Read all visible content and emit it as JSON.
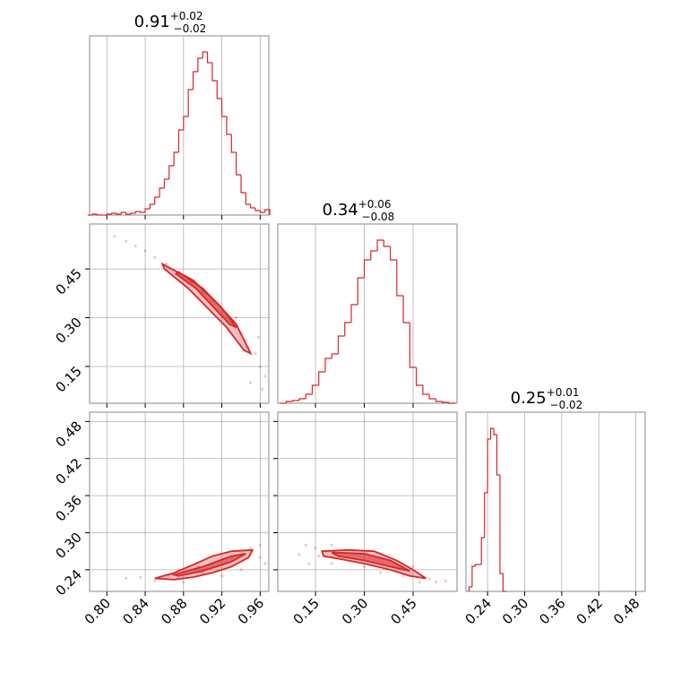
{
  "chart_data": [
    {
      "type": "histogram",
      "title": {
        "value": "0.91",
        "plus": "+0.02",
        "minus": "−0.02"
      },
      "color": "#d62728",
      "grid": true,
      "bins": [
        0.78,
        0.785,
        0.79,
        0.795,
        0.8,
        0.805,
        0.81,
        0.815,
        0.82,
        0.825,
        0.83,
        0.835,
        0.84,
        0.845,
        0.85,
        0.855,
        0.86,
        0.865,
        0.87,
        0.875,
        0.88,
        0.885,
        0.89,
        0.895,
        0.9,
        0.905,
        0.91,
        0.915,
        0.92,
        0.925,
        0.93,
        0.935,
        0.94,
        0.945,
        0.95,
        0.955,
        0.96,
        0.965,
        0.97
      ],
      "counts": [
        0,
        1,
        0,
        0,
        1,
        2,
        1,
        3,
        1,
        2,
        4,
        3,
        7,
        12,
        20,
        30,
        40,
        55,
        70,
        95,
        110,
        140,
        160,
        175,
        182,
        170,
        150,
        130,
        110,
        90,
        70,
        45,
        25,
        12,
        8,
        5,
        3,
        6
      ],
      "xlim": [
        0.782,
        0.969
      ],
      "ylim": [
        0,
        200
      ],
      "xticks": [
        {
          "value": 0.8,
          "label": "0.80"
        },
        0.84,
        0.88,
        0.92,
        0.96
      ],
      "xtick_labels": false
    },
    {
      "type": "scatter",
      "color": "#d62728",
      "grid": true,
      "x": [
        0.808,
        0.82,
        0.83,
        0.84,
        0.85,
        0.862,
        0.875,
        0.888,
        0.9,
        0.91,
        0.92,
        0.93,
        0.94,
        0.948,
        0.955,
        0.96,
        0.965,
        0.95,
        0.945,
        0.925,
        0.935,
        0.958,
        0.962
      ],
      "y": [
        0.55,
        0.535,
        0.52,
        0.505,
        0.485,
        0.465,
        0.44,
        0.41,
        0.38,
        0.35,
        0.32,
        0.29,
        0.25,
        0.21,
        0.19,
        0.15,
        0.12,
        0.1,
        0.23,
        0.29,
        0.3,
        0.24,
        0.08
      ],
      "contours": [
        {
          "x": [
            0.858,
            0.89,
            0.915,
            0.935,
            0.95,
            0.943,
            0.925,
            0.905,
            0.885,
            0.86
          ],
          "y": [
            0.465,
            0.415,
            0.345,
            0.28,
            0.19,
            0.2,
            0.27,
            0.33,
            0.39,
            0.45
          ]
        },
        {
          "x": [
            0.875,
            0.9,
            0.92,
            0.935,
            0.928,
            0.912,
            0.893,
            0.872
          ],
          "y": [
            0.44,
            0.39,
            0.33,
            0.27,
            0.28,
            0.33,
            0.39,
            0.435
          ]
        }
      ],
      "xlim": [
        0.782,
        0.969
      ],
      "ylim": [
        0.037,
        0.588
      ],
      "xticks": [
        {
          "value": 0.8,
          "label": "0.80"
        },
        0.84,
        0.88,
        0.92,
        0.96
      ],
      "xtick_labels": false,
      "yticks": [
        0.15,
        {
          "value": 0.3,
          "label": "0.30"
        },
        0.45
      ],
      "ytick_labels": true
    },
    {
      "type": "histogram",
      "title": {
        "value": "0.34",
        "plus": "+0.06",
        "minus": "−0.08"
      },
      "color": "#d62728",
      "grid": true,
      "bins": [
        0.04,
        0.06,
        0.08,
        0.1,
        0.12,
        0.14,
        0.16,
        0.18,
        0.2,
        0.22,
        0.24,
        0.26,
        0.28,
        0.3,
        0.32,
        0.34,
        0.36,
        0.38,
        0.4,
        0.42,
        0.44,
        0.46,
        0.48,
        0.5,
        0.52,
        0.54,
        0.56,
        0.58
      ],
      "counts": [
        0,
        2,
        3,
        5,
        10,
        20,
        35,
        50,
        55,
        75,
        90,
        110,
        140,
        160,
        170,
        182,
        175,
        160,
        120,
        90,
        40,
        20,
        10,
        5,
        2,
        1,
        0
      ],
      "xlim": [
        0.034,
        0.585
      ],
      "ylim": [
        0,
        200
      ],
      "xticks": [
        0.15,
        {
          "value": 0.3,
          "label": "0.30"
        },
        0.45
      ],
      "xtick_labels": false
    },
    {
      "type": "scatter",
      "color": "#d62728",
      "grid": true,
      "x": [
        0.82,
        0.835,
        0.85,
        0.865,
        0.88,
        0.9,
        0.91,
        0.93,
        0.95,
        0.96,
        0.965,
        0.94,
        0.92,
        0.895,
        0.875,
        0.96
      ],
      "y": [
        0.226,
        0.228,
        0.222,
        0.23,
        0.22,
        0.235,
        0.25,
        0.26,
        0.275,
        0.28,
        0.25,
        0.24,
        0.23,
        0.245,
        0.24,
        0.26
      ],
      "contours": [
        {
          "x": [
            0.85,
            0.87,
            0.89,
            0.91,
            0.93,
            0.952,
            0.948,
            0.93,
            0.91,
            0.89,
            0.87
          ],
          "y": [
            0.226,
            0.235,
            0.248,
            0.262,
            0.27,
            0.272,
            0.26,
            0.245,
            0.235,
            0.228,
            0.224
          ]
        },
        {
          "x": [
            0.87,
            0.9,
            0.93,
            0.945,
            0.93,
            0.9,
            0.875
          ],
          "y": [
            0.232,
            0.245,
            0.262,
            0.266,
            0.253,
            0.238,
            0.23
          ]
        }
      ],
      "xlim": [
        0.782,
        0.969
      ],
      "ylim": [
        0.205,
        0.495
      ],
      "xticks": [
        {
          "value": 0.8,
          "label": "0.80"
        },
        0.84,
        0.88,
        0.92,
        0.96
      ],
      "xtick_labels": true,
      "yticks": [
        0.24,
        {
          "value": 0.3,
          "label": "0.30"
        },
        0.36,
        0.42,
        0.48
      ],
      "ytick_labels": true
    },
    {
      "type": "scatter",
      "color": "#d62728",
      "grid": true,
      "x": [
        0.12,
        0.1,
        0.13,
        0.15,
        0.2,
        0.25,
        0.3,
        0.35,
        0.4,
        0.42,
        0.47,
        0.5,
        0.52,
        0.55,
        0.45,
        0.2,
        0.16
      ],
      "y": [
        0.28,
        0.265,
        0.25,
        0.275,
        0.28,
        0.26,
        0.245,
        0.235,
        0.25,
        0.23,
        0.22,
        0.225,
        0.22,
        0.222,
        0.245,
        0.25,
        0.262
      ],
      "contours": [
        {
          "x": [
            0.17,
            0.25,
            0.33,
            0.4,
            0.45,
            0.49,
            0.44,
            0.38,
            0.3,
            0.22,
            0.175
          ],
          "y": [
            0.27,
            0.272,
            0.27,
            0.255,
            0.24,
            0.226,
            0.23,
            0.24,
            0.25,
            0.258,
            0.262
          ]
        },
        {
          "x": [
            0.2,
            0.3,
            0.38,
            0.44,
            0.38,
            0.3,
            0.22
          ],
          "y": [
            0.268,
            0.266,
            0.255,
            0.238,
            0.245,
            0.255,
            0.262
          ]
        }
      ],
      "xlim": [
        0.034,
        0.585
      ],
      "ylim": [
        0.205,
        0.495
      ],
      "xticks": [
        0.15,
        {
          "value": 0.3,
          "label": "0.30"
        },
        0.45
      ],
      "xtick_labels": true,
      "yticks": [
        0.24,
        {
          "value": 0.3,
          "label": "0.30"
        },
        0.36,
        0.42,
        0.48
      ],
      "ytick_labels": false
    },
    {
      "type": "histogram",
      "title": {
        "value": "0.25",
        "plus": "+0.01",
        "minus": "−0.02"
      },
      "color": "#d62728",
      "grid": true,
      "bins": [
        0.21,
        0.215,
        0.22,
        0.225,
        0.23,
        0.235,
        0.24,
        0.245,
        0.25,
        0.255,
        0.26,
        0.265,
        0.27
      ],
      "counts": [
        5,
        28,
        30,
        30,
        60,
        110,
        170,
        182,
        175,
        130,
        20,
        0
      ],
      "xlim": [
        0.205,
        0.495
      ],
      "ylim": [
        0,
        200
      ],
      "xticks": [
        0.24,
        {
          "value": 0.3,
          "label": "0.30"
        },
        0.36,
        0.42,
        0.48
      ],
      "xtick_labels": true
    }
  ]
}
